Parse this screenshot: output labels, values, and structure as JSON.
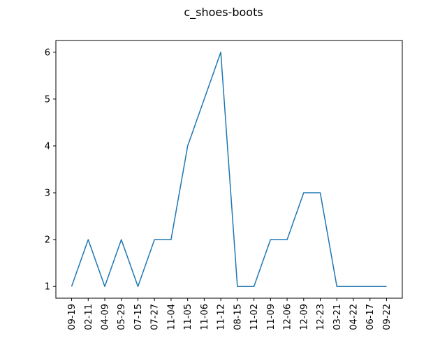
{
  "chart_data": {
    "type": "line",
    "title": "c_shoes-boots",
    "xlabel": "",
    "ylabel": "",
    "categories": [
      "09-19",
      "02-11",
      "04-09",
      "05-29",
      "07-15",
      "07-27",
      "11-04",
      "11-05",
      "11-06",
      "11-12",
      "08-15",
      "11-02",
      "11-09",
      "12-06",
      "12-09",
      "12-23",
      "03-21",
      "04-22",
      "06-17",
      "09-22"
    ],
    "series": [
      {
        "values": [
          1,
          2,
          1,
          2,
          1,
          2,
          2,
          4,
          5,
          6,
          1,
          1,
          2,
          2,
          3,
          3,
          1,
          1,
          1,
          1
        ],
        "color": "#1f77b4"
      }
    ],
    "yticks": [
      1,
      2,
      3,
      4,
      5,
      6
    ],
    "ylim": [
      0.75,
      6.25
    ],
    "grid": false,
    "legend": "none"
  }
}
